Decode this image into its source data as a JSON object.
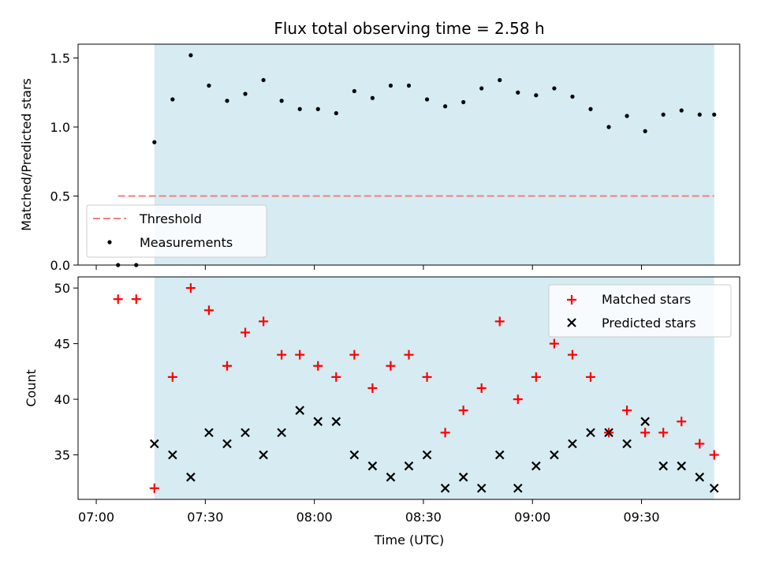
{
  "chart_data": [
    {
      "type": "scatter",
      "title": "Flux total observing time = 2.58 h",
      "xlabel": "",
      "ylabel": "Matched/Predicted stars",
      "ylim": [
        0,
        1.6
      ],
      "yticks": [
        "0.0",
        "0.5",
        "1.0",
        "1.5"
      ],
      "ytick_values": [
        0,
        0.5,
        1.0,
        1.5
      ],
      "xtick_labels_visible": false,
      "shaded_span": {
        "start": "07:16",
        "end": "09:50",
        "color": "#add8e6"
      },
      "legend": {
        "position": "lower-left",
        "entries": [
          "Threshold",
          "Measurements"
        ]
      },
      "series": [
        {
          "name": "Threshold",
          "style": "dashed-line",
          "color": "#f08080",
          "x": [
            "07:06",
            "09:50"
          ],
          "y": [
            0.5,
            0.5
          ]
        },
        {
          "name": "Measurements",
          "style": "dot",
          "color": "#000000",
          "x": [
            "07:06",
            "07:11",
            "07:16",
            "07:21",
            "07:26",
            "07:31",
            "07:36",
            "07:41",
            "07:46",
            "07:51",
            "07:56",
            "08:01",
            "08:06",
            "08:11",
            "08:16",
            "08:21",
            "08:26",
            "08:31",
            "08:36",
            "08:41",
            "08:46",
            "08:51",
            "08:56",
            "09:01",
            "09:06",
            "09:11",
            "09:16",
            "09:21",
            "09:26",
            "09:31",
            "09:36",
            "09:41",
            "09:46",
            "09:50"
          ],
          "y": [
            0.0,
            0.0,
            0.89,
            1.2,
            1.52,
            1.3,
            1.19,
            1.24,
            1.34,
            1.19,
            1.13,
            1.13,
            1.1,
            1.26,
            1.21,
            1.3,
            1.3,
            1.2,
            1.15,
            1.18,
            1.28,
            1.34,
            1.25,
            1.23,
            1.28,
            1.22,
            1.13,
            1.0,
            1.08,
            0.97,
            1.09,
            1.12,
            1.09,
            1.09
          ]
        }
      ]
    },
    {
      "type": "scatter",
      "title": "",
      "xlabel": "Time (UTC)",
      "ylabel": "Count",
      "ylim": [
        31,
        51
      ],
      "yticks": [
        "35",
        "40",
        "45",
        "50"
      ],
      "ytick_values": [
        35,
        40,
        45,
        50
      ],
      "xlim": [
        "06:55",
        "09:57"
      ],
      "xticks": [
        "07:00",
        "07:30",
        "08:00",
        "08:30",
        "09:00",
        "09:30"
      ],
      "shaded_span": {
        "start": "07:16",
        "end": "09:50",
        "color": "#add8e6"
      },
      "legend": {
        "position": "top-right",
        "entries": [
          "Matched stars",
          "Predicted stars"
        ]
      },
      "series": [
        {
          "name": "Matched stars",
          "style": "plus",
          "color": "#ff0000",
          "x": [
            "07:06",
            "07:11",
            "07:16",
            "07:21",
            "07:26",
            "07:31",
            "07:36",
            "07:41",
            "07:46",
            "07:51",
            "07:56",
            "08:01",
            "08:06",
            "08:11",
            "08:16",
            "08:21",
            "08:26",
            "08:31",
            "08:36",
            "08:41",
            "08:46",
            "08:51",
            "08:56",
            "09:01",
            "09:06",
            "09:11",
            "09:16",
            "09:21",
            "09:26",
            "09:31",
            "09:36",
            "09:41",
            "09:46",
            "09:50"
          ],
          "y": [
            49,
            49,
            32,
            42,
            50,
            48,
            43,
            46,
            47,
            44,
            44,
            43,
            42,
            44,
            41,
            43,
            44,
            42,
            37,
            39,
            41,
            47,
            40,
            42,
            45,
            44,
            42,
            37,
            39,
            37,
            37,
            38,
            36,
            35
          ]
        },
        {
          "name": "Predicted stars",
          "style": "x",
          "color": "#000000",
          "x": [
            "07:16",
            "07:21",
            "07:26",
            "07:31",
            "07:36",
            "07:41",
            "07:46",
            "07:51",
            "07:56",
            "08:01",
            "08:06",
            "08:11",
            "08:16",
            "08:21",
            "08:26",
            "08:31",
            "08:36",
            "08:41",
            "08:46",
            "08:51",
            "08:56",
            "09:01",
            "09:06",
            "09:11",
            "09:16",
            "09:21",
            "09:26",
            "09:31",
            "09:36",
            "09:41",
            "09:46",
            "09:50"
          ],
          "y": [
            36,
            35,
            33,
            37,
            36,
            37,
            35,
            37,
            39,
            38,
            38,
            35,
            34,
            33,
            34,
            35,
            32,
            33,
            32,
            35,
            32,
            34,
            35,
            36,
            37,
            37,
            36,
            38,
            34,
            34,
            33,
            32
          ]
        }
      ]
    }
  ]
}
